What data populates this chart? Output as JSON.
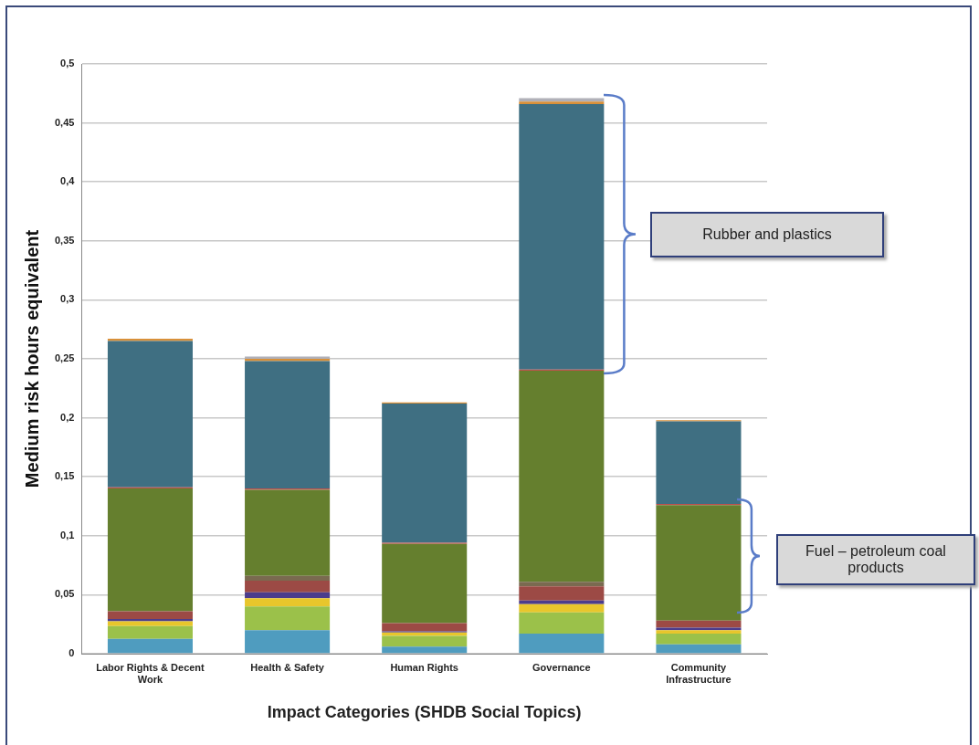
{
  "chart_data": {
    "type": "bar",
    "stacked": true,
    "xlabel": "Impact Categories (SHDB Social Topics)",
    "ylabel": "Medium risk hours equivalent",
    "categories": [
      "Labor Rights & Decent Work",
      "Health & Safety",
      "Human Rights",
      "Governance",
      "Community Infrastructure"
    ],
    "series": [
      {
        "color": "#4f9cbf",
        "values": [
          0.0125,
          0.02,
          0.006,
          0.017,
          0.008
        ]
      },
      {
        "color": "#9bc14a",
        "values": [
          0.011,
          0.02,
          0.009,
          0.018,
          0.009
        ]
      },
      {
        "color": "#e8c62c",
        "values": [
          0.004,
          0.007,
          0.003,
          0.007,
          0.003
        ]
      },
      {
        "color": "#4b3c8c",
        "values": [
          0.002,
          0.005,
          0.001,
          0.003,
          0.002
        ]
      },
      {
        "color": "#9c4a45",
        "values": [
          0.0065,
          0.01,
          0.007,
          0.012,
          0.006
        ]
      },
      {
        "color": "#7a6a50",
        "values": [
          0,
          0.004,
          0,
          0.004,
          0
        ]
      },
      {
        "color": "#657f2e",
        "values": [
          0.104,
          0.073,
          0.067,
          0.179,
          0.098
        ]
      },
      {
        "color": "#c0504d",
        "values": [
          0.001,
          0.001,
          0.001,
          0.001,
          0.001
        ]
      },
      {
        "color": "#3f6f82",
        "values": [
          0.124,
          0.108,
          0.118,
          0.225,
          0.07
        ]
      },
      {
        "color": "#d8903a",
        "values": [
          0.002,
          0.002,
          0.001,
          0.002,
          0.001
        ]
      },
      {
        "color": "#b0b0b8",
        "values": [
          null,
          0.002,
          null,
          0.003,
          null
        ]
      }
    ],
    "ylim": [
      0,
      0.5
    ],
    "yticks": [
      0,
      {
        "value": 0.05,
        "label": "0,05"
      },
      {
        "value": 0.1,
        "label": "0,1"
      },
      {
        "value": 0.15,
        "label": "0,15"
      },
      {
        "value": 0.2,
        "label": "0,2"
      },
      {
        "value": 0.25,
        "label": "0,25"
      },
      {
        "value": 0.3,
        "label": "0,3"
      },
      {
        "value": 0.35,
        "label": "0,35"
      },
      {
        "value": 0.4,
        "label": "0,4"
      },
      {
        "value": 0.45,
        "label": "0,45"
      },
      {
        "value": 0.5,
        "label": "0,5"
      }
    ],
    "grid": "y",
    "legend": false,
    "annotations": [
      "Rubber and plastics",
      "Fuel – petroleum coal products"
    ]
  }
}
